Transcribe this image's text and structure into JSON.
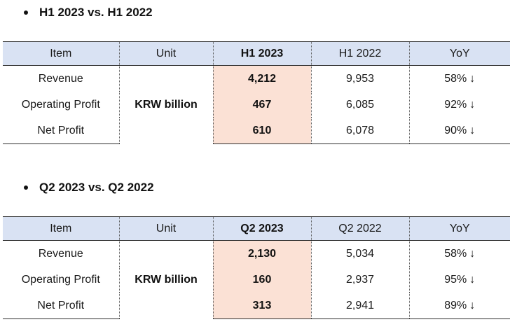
{
  "sections": [
    {
      "heading": "H1 2023 vs. H1 2022",
      "table": {
        "headers": [
          "Item",
          "Unit",
          "H1 2023",
          "H1 2022",
          "YoY"
        ],
        "unit": "KRW billion",
        "rows": [
          {
            "item": "Revenue",
            "current": "4,212",
            "previous": "9,953",
            "yoy": "58%",
            "yoy_arrow": "↓"
          },
          {
            "item": "Operating Profit",
            "current": "467",
            "previous": "6,085",
            "yoy": "92%",
            "yoy_arrow": "↓"
          },
          {
            "item": "Net Profit",
            "current": "610",
            "previous": "6,078",
            "yoy": "90%",
            "yoy_arrow": "↓"
          }
        ]
      }
    },
    {
      "heading": "Q2 2023 vs. Q2 2022",
      "table": {
        "headers": [
          "Item",
          "Unit",
          "Q2 2023",
          "Q2 2022",
          "YoY"
        ],
        "unit": "KRW billion",
        "rows": [
          {
            "item": "Revenue",
            "current": "2,130",
            "previous": "5,034",
            "yoy": "58%",
            "yoy_arrow": "↓"
          },
          {
            "item": "Operating Profit",
            "current": "160",
            "previous": "2,937",
            "yoy": "95%",
            "yoy_arrow": "↓"
          },
          {
            "item": "Net Profit",
            "current": "313",
            "previous": "2,941",
            "yoy": "89%",
            "yoy_arrow": "↓"
          }
        ]
      }
    }
  ],
  "colors": {
    "header_bg": "#d9e2f3",
    "highlight_bg": "#fbe1d5",
    "text": "#1a1a1a"
  }
}
